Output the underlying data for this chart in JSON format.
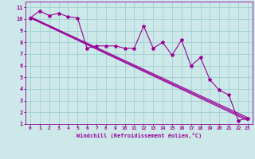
{
  "xlabel": "Windchill (Refroidissement éolien,°C)",
  "bg_color": "#cce8e8",
  "grid_color": "#99cccc",
  "line_color": "#990099",
  "xlim": [
    -0.5,
    23.5
  ],
  "ylim": [
    1,
    11.5
  ],
  "xticks": [
    0,
    1,
    2,
    3,
    4,
    5,
    6,
    7,
    8,
    9,
    10,
    11,
    12,
    13,
    14,
    15,
    16,
    17,
    18,
    19,
    20,
    21,
    22,
    23
  ],
  "yticks": [
    1,
    2,
    3,
    4,
    5,
    6,
    7,
    8,
    9,
    10,
    11
  ],
  "scatter_x": [
    0,
    1,
    2,
    3,
    4,
    5,
    6,
    7,
    8,
    9,
    10,
    11,
    12,
    13,
    14,
    15,
    16,
    17,
    18,
    19,
    20,
    21,
    22,
    23
  ],
  "scatter_y": [
    10.1,
    10.7,
    10.3,
    10.5,
    10.2,
    10.1,
    7.5,
    7.7,
    7.7,
    7.7,
    7.5,
    7.5,
    9.4,
    7.5,
    8.0,
    6.9,
    8.2,
    6.0,
    6.7,
    4.8,
    3.9,
    3.5,
    1.3,
    1.5
  ],
  "reg_lines": [
    {
      "x": [
        0,
        23
      ],
      "y": [
        10.2,
        1.55
      ]
    },
    {
      "x": [
        0,
        23
      ],
      "y": [
        10.1,
        1.3
      ]
    },
    {
      "x": [
        0,
        23
      ],
      "y": [
        10.15,
        1.42
      ]
    }
  ]
}
